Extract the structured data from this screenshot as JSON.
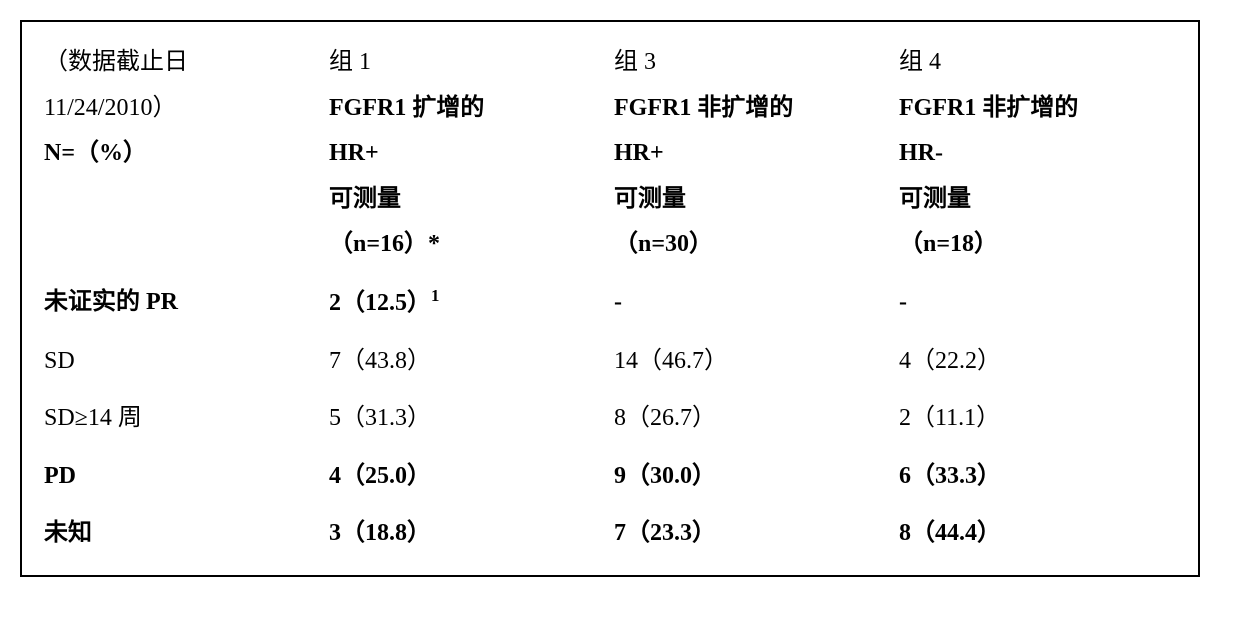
{
  "style": {
    "border_color": "#000000",
    "background_color": "#ffffff",
    "text_color": "#000000",
    "font_family": "SimSun",
    "font_size_pt": 18,
    "col_widths_pct": [
      25,
      25,
      25,
      25
    ]
  },
  "header": {
    "left": {
      "line1_blank": "",
      "line2": "（数据截止日",
      "line3": "11/24/2010）",
      "line4_bold": "N=（%）"
    },
    "group1": {
      "line1": "组 1",
      "line2_bold": "FGFR1 扩增的",
      "line3_bold": "HR+",
      "line4_bold": "可测量",
      "line5_bold": "（n=16）*"
    },
    "group3": {
      "line1": "组 3",
      "line2_bold": "FGFR1 非扩增的",
      "line3_bold": "HR+",
      "line4_bold": "可测量",
      "line5_bold": "（n=30）"
    },
    "group4": {
      "line1": "组 4",
      "line2_bold": "FGFR1 非扩增的",
      "line3_bold": "HR-",
      "line4_bold": "可测量",
      "line5_bold": "（n=18）"
    }
  },
  "rows": {
    "unconfirmed_pr": {
      "label": "未证实的 PR",
      "g1_val": "2（12.5）",
      "g1_sup": "1",
      "g3": "-",
      "g4": "-"
    },
    "sd": {
      "label": "SD",
      "g1": "7（43.8）",
      "g3": "14（46.7）",
      "g4": "4（22.2）"
    },
    "sd_ge14": {
      "label": "SD≥14 周",
      "g1": "5（31.3）",
      "g3": "8（26.7）",
      "g4": "2（11.1）"
    },
    "pd": {
      "label": "PD",
      "g1": "4（25.0）",
      "g3": "9（30.0）",
      "g4": "6（33.3）"
    },
    "unknown": {
      "label": "未知",
      "g1": "3（18.8）",
      "g3": "7（23.3）",
      "g4": "8（44.4）"
    }
  }
}
